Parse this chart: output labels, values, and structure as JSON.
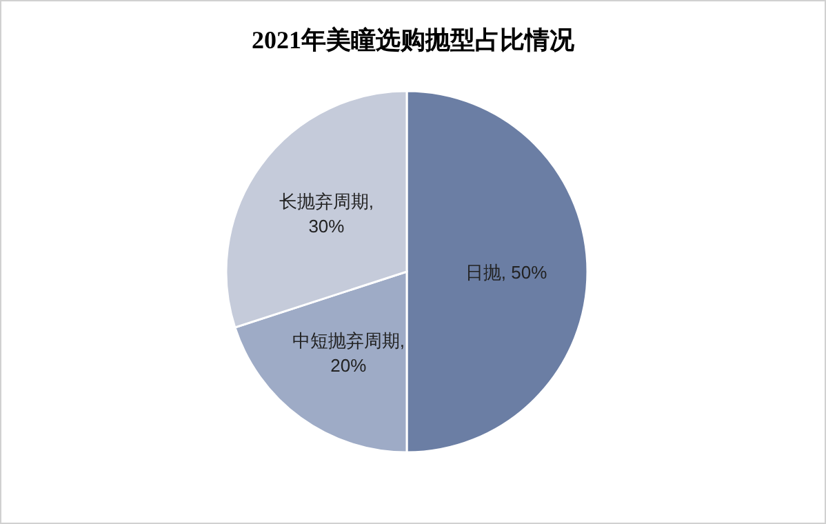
{
  "chart_data": {
    "type": "pie",
    "title": "2021年美瞳选购抛型占比情况",
    "categories": [
      "日抛",
      "中短抛弃周期",
      "长抛弃周期"
    ],
    "values": [
      50,
      20,
      30
    ],
    "value_labels": [
      ", 50%",
      ",\n20%",
      ",\n30%"
    ],
    "colors": [
      "#6b7ea4",
      "#9eabc6",
      "#c5cbda"
    ]
  }
}
